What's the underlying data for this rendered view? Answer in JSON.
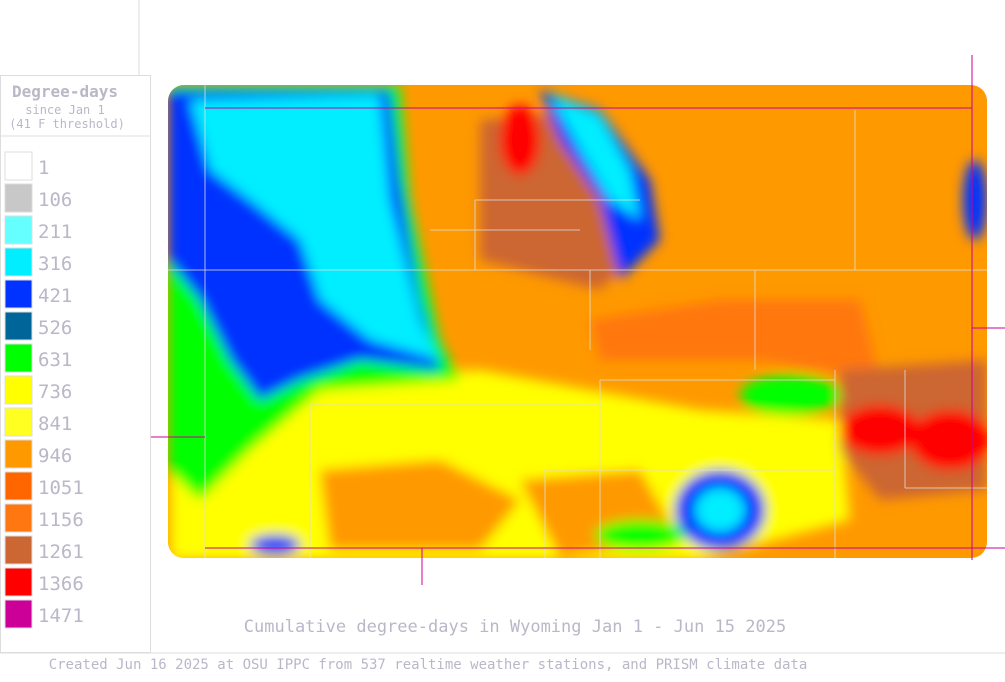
{
  "legend": {
    "title": "Degree-days",
    "subtitle": "since Jan 1",
    "threshold": "(41 F threshold)",
    "items": [
      {
        "label": 1,
        "color": "#ffffff"
      },
      {
        "label": 106,
        "color": "#c8c8c8"
      },
      {
        "label": 211,
        "color": "#66ffff"
      },
      {
        "label": 316,
        "color": "#00eeff"
      },
      {
        "label": 421,
        "color": "#0033ff"
      },
      {
        "label": 526,
        "color": "#006699"
      },
      {
        "label": 631,
        "color": "#00ff00"
      },
      {
        "label": 736,
        "color": "#ffff00"
      },
      {
        "label": 841,
        "color": "#ffff22"
      },
      {
        "label": 946,
        "color": "#ff9900"
      },
      {
        "label": 1051,
        "color": "#ff6600"
      },
      {
        "label": 1156,
        "color": "#ff7711"
      },
      {
        "label": 1261,
        "color": "#cc6633"
      },
      {
        "label": 1366,
        "color": "#ff0000"
      },
      {
        "label": 1471,
        "color": "#cc0099"
      }
    ]
  },
  "caption": "Cumulative degree-days in Wyoming  Jan 1 - Jun 15 2025",
  "footer": "Created Jun 16 2025 at OSU IPPC from 537 realtime weather stations, and PRISM climate data"
}
